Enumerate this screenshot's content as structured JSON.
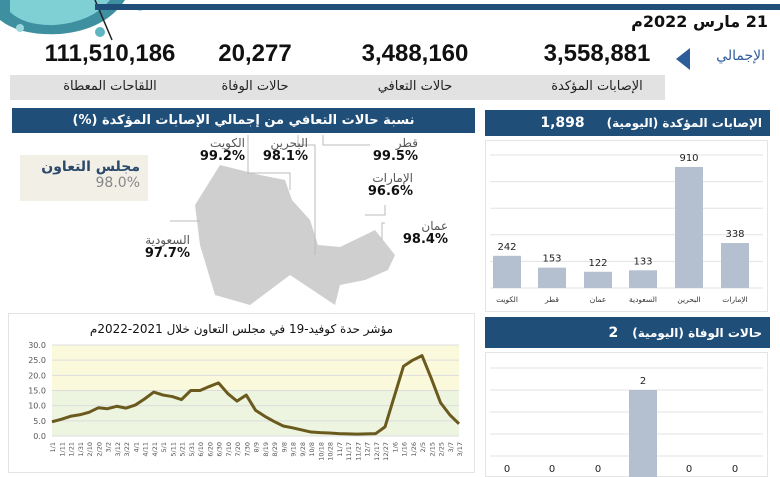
{
  "date": "21 مارس 2022م",
  "totals": {
    "label": "الإجمالي",
    "items": [
      {
        "label": "الإصابات المؤكدة",
        "value": "3,558,881"
      },
      {
        "label": "حالات التعافي",
        "value": "3,488,160"
      },
      {
        "label": "حالات الوفاة",
        "value": "20,277"
      },
      {
        "label": "اللقاحات المعطاة",
        "value": "111,510,186"
      }
    ]
  },
  "recovery": {
    "title": "نسبة حالات التعافي من إجمالي الإصابات المؤكدة (%)",
    "gcc": {
      "name": "مجلس التعاون",
      "value": "98.0%"
    },
    "countries": [
      {
        "name": "الكويت",
        "value": "99.2%"
      },
      {
        "name": "البحرين",
        "value": "98.1%"
      },
      {
        "name": "قطر",
        "value": "99.5%"
      },
      {
        "name": "الإمارات",
        "value": "96.6%"
      },
      {
        "name": "عمان",
        "value": "98.4%"
      },
      {
        "name": "السعودية",
        "value": "97.7%"
      }
    ]
  },
  "colors": {
    "navy": "#1f4e79",
    "bar": "#b4bfcf",
    "line": "#6b5a1e",
    "band_high": "#fbf9dc",
    "band_low": "#edf4e0"
  },
  "chart_data": [
    {
      "type": "line",
      "title": "مؤشر حدة كوفيد-19 في مجلس التعاون خلال 2021-2022م",
      "ylim": [
        0,
        30
      ],
      "yticks": [
        "0.0",
        "5.0",
        "10.0",
        "15.0",
        "20.0",
        "25.0",
        "30.0"
      ],
      "x": [
        "1/1",
        "1/11",
        "1/21",
        "1/31",
        "2/10",
        "2/20",
        "3/2",
        "3/12",
        "3/22",
        "4/1",
        "4/11",
        "4/21",
        "5/1",
        "5/11",
        "5/21",
        "5/31",
        "6/10",
        "6/20",
        "6/30",
        "7/10",
        "7/20",
        "7/30",
        "8/9",
        "8/19",
        "8/29",
        "9/8",
        "9/18",
        "9/28",
        "10/8",
        "10/18",
        "10/28",
        "11/7",
        "11/17",
        "11/27",
        "12/7",
        "12/17",
        "12/27",
        "1/6",
        "1/16",
        "1/26",
        "2/5",
        "2/15",
        "2/25",
        "3/7",
        "3/17"
      ],
      "values": [
        4.7,
        5.5,
        6.5,
        7,
        7.8,
        9.3,
        9,
        9.8,
        9.2,
        10.2,
        12.2,
        14.5,
        13.5,
        13,
        12,
        15,
        15,
        16.3,
        17.5,
        14,
        11.5,
        13.5,
        8.5,
        6.5,
        4.8,
        3.3,
        2.7,
        2,
        1.3,
        1.1,
        1,
        0.8,
        0.7,
        0.6,
        0.7,
        0.8,
        3,
        13,
        23,
        25,
        26.5,
        19,
        11,
        7,
        4
      ],
      "bands": [
        {
          "from": 0,
          "to": 15,
          "color": "#edf4e0"
        },
        {
          "from": 15,
          "to": 30,
          "color": "#fbf9dc"
        }
      ],
      "grid": true
    },
    {
      "type": "bar",
      "title": "الإصابات المؤكدة (اليومية)",
      "total": "1,898",
      "ylim": [
        0,
        1000
      ],
      "categories": [
        "الكويت",
        "قطر",
        "عمان",
        "السعودية",
        "البحرين",
        "الإمارات"
      ],
      "values": [
        242,
        153,
        122,
        133,
        910,
        338
      ],
      "grid": true
    },
    {
      "type": "bar",
      "title": "حالات الوفاة (اليومية)",
      "total": "2",
      "ylim": [
        0,
        2.5
      ],
      "values": [
        0,
        0,
        0,
        2,
        0,
        0
      ],
      "grid": true
    }
  ]
}
